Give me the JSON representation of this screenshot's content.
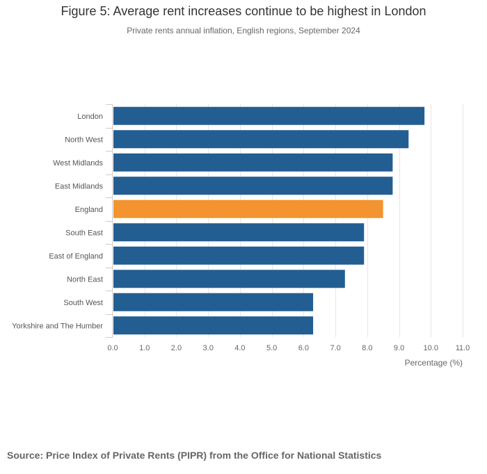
{
  "colors": {
    "bar": "#235e92",
    "highlight": "#f39430",
    "grid": "#e6e6e6",
    "axis": "#cccccc"
  },
  "chart_data": {
    "type": "bar",
    "orientation": "horizontal",
    "title": "Figure 5: Average rent increases continue to be highest in London",
    "subtitle": "Private rents annual inflation, English regions, September 2024",
    "categories": [
      "London",
      "North West",
      "West Midlands",
      "East Midlands",
      "England",
      "South East",
      "East of England",
      "North East",
      "South West",
      "Yorkshire and The Humber"
    ],
    "values": [
      9.8,
      9.3,
      8.8,
      8.8,
      8.5,
      7.9,
      7.9,
      7.3,
      6.3,
      6.3
    ],
    "highlight_category": "England",
    "xlabel": "Percentage (%)",
    "ylabel": "",
    "xlim": [
      0,
      11
    ],
    "ticks": [
      "0.0",
      "1.0",
      "2.0",
      "3.0",
      "4.0",
      "5.0",
      "6.0",
      "7.0",
      "8.0",
      "9.0",
      "10.0",
      "11.0"
    ],
    "grid": true,
    "legend": "none"
  },
  "source": "Source: Price Index of Private Rents (PIPR) from the Office for National Statistics"
}
